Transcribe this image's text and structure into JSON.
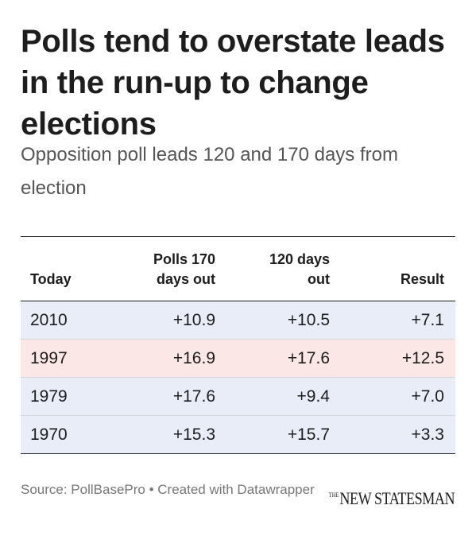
{
  "title": "Polls tend to overstate leads in the run-up to change elections",
  "subtitle": "Opposition poll leads 120 and 170 days from election",
  "footer": {
    "source": "Source: PollBasePro • Created with Datawrapper",
    "logo_small": "THE",
    "logo_main": "NEW STATESMAN"
  },
  "chart_data": {
    "type": "table",
    "columns": [
      "Today",
      "Polls 170\ndays out",
      "120 days\nout",
      "Result"
    ],
    "rows": [
      {
        "label": "2010",
        "values": [
          "+10.9",
          "+10.5",
          "+7.1"
        ],
        "color": "#e8edf7"
      },
      {
        "label": "1997",
        "values": [
          "+16.9",
          "+17.6",
          "+12.5"
        ],
        "color": "#fbe7e6"
      },
      {
        "label": "1979",
        "values": [
          "+17.6",
          "+9.4",
          "+7.0"
        ],
        "color": "#e8edf7"
      },
      {
        "label": "1970",
        "values": [
          "+15.3",
          "+15.7",
          "+3.3"
        ],
        "color": "#e8edf7"
      }
    ]
  }
}
